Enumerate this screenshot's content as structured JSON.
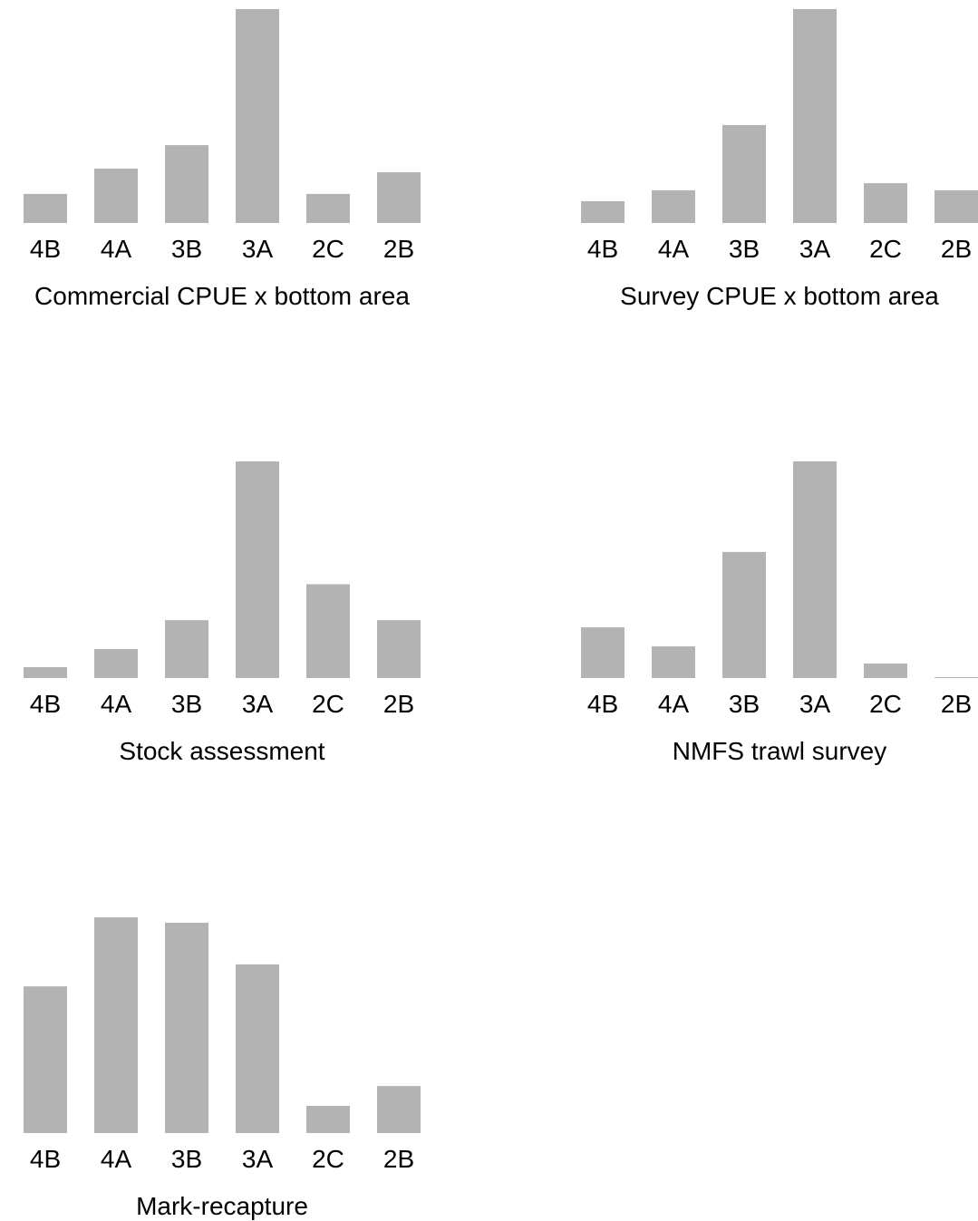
{
  "bar_color": "#b3b3b3",
  "chart_data": [
    {
      "type": "bar",
      "title": "Commercial CPUE x bottom area",
      "categories": [
        "4B",
        "4A",
        "3B",
        "3A",
        "2C",
        "2B"
      ],
      "values": [
        0.136,
        0.254,
        0.364,
        1.0,
        0.136,
        0.237
      ],
      "ylim": [
        0,
        1
      ],
      "grid": false
    },
    {
      "type": "bar",
      "title": "Survey CPUE x bottom area",
      "categories": [
        "4B",
        "4A",
        "3B",
        "3A",
        "2C",
        "2B"
      ],
      "values": [
        0.102,
        0.153,
        0.458,
        1.0,
        0.186,
        0.153
      ],
      "ylim": [
        0,
        1
      ],
      "grid": false
    },
    {
      "type": "bar",
      "title": "Stock assessment",
      "categories": [
        "4B",
        "4A",
        "3B",
        "3A",
        "2C",
        "2B"
      ],
      "values": [
        0.05,
        0.134,
        0.267,
        1.0,
        0.433,
        0.267
      ],
      "ylim": [
        0,
        1
      ],
      "grid": false
    },
    {
      "type": "bar",
      "title": "NMFS trawl survey",
      "categories": [
        "4B",
        "4A",
        "3B",
        "3A",
        "2C",
        "2B"
      ],
      "values": [
        0.234,
        0.146,
        0.582,
        1.0,
        0.067,
        0.004
      ],
      "ylim": [
        0,
        1
      ],
      "grid": false
    },
    {
      "type": "bar",
      "title": "Mark-recapture",
      "categories": [
        "4B",
        "4A",
        "3B",
        "3A",
        "2C",
        "2B"
      ],
      "values": [
        0.68,
        1.0,
        0.975,
        0.782,
        0.126,
        0.218
      ],
      "ylim": [
        0,
        1
      ],
      "grid": false
    }
  ]
}
